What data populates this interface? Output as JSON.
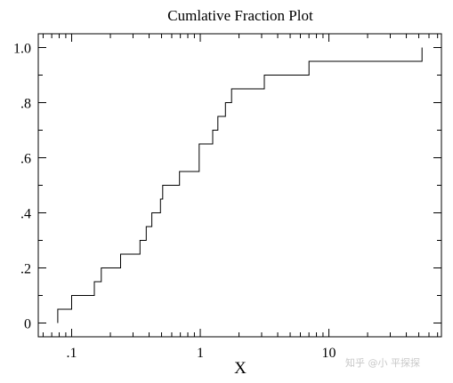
{
  "chart_data": {
    "type": "step",
    "title": "Cumlative Fraction Plot",
    "xlabel": "X",
    "ylabel": "",
    "xscale": "log",
    "xlim": [
      0.055,
      75
    ],
    "ylim": [
      -0.05,
      1.05
    ],
    "xticks_major": [
      {
        "value": 0.1,
        "label": ".1"
      },
      {
        "value": 1,
        "label": "1"
      },
      {
        "value": 10,
        "label": "10"
      }
    ],
    "yticks_major": [
      {
        "value": 0,
        "label": "0"
      },
      {
        "value": 0.2,
        "label": ".2"
      },
      {
        "value": 0.4,
        "label": ".4"
      },
      {
        "value": 0.6,
        "label": ".6"
      },
      {
        "value": 0.8,
        "label": ".8"
      },
      {
        "value": 1.0,
        "label": "1.0"
      }
    ],
    "yticks_minor": [
      0.1,
      0.3,
      0.5,
      0.7,
      0.9
    ],
    "grid": false,
    "steps": [
      {
        "x": 0.078,
        "y": 0.05
      },
      {
        "x": 0.1,
        "y": 0.1
      },
      {
        "x": 0.15,
        "y": 0.15
      },
      {
        "x": 0.17,
        "y": 0.2
      },
      {
        "x": 0.24,
        "y": 0.25
      },
      {
        "x": 0.34,
        "y": 0.3
      },
      {
        "x": 0.38,
        "y": 0.35
      },
      {
        "x": 0.42,
        "y": 0.4
      },
      {
        "x": 0.49,
        "y": 0.45
      },
      {
        "x": 0.51,
        "y": 0.5
      },
      {
        "x": 0.69,
        "y": 0.55
      },
      {
        "x": 0.98,
        "y": 0.65
      },
      {
        "x": 1.25,
        "y": 0.7
      },
      {
        "x": 1.37,
        "y": 0.75
      },
      {
        "x": 1.57,
        "y": 0.8
      },
      {
        "x": 1.75,
        "y": 0.85
      },
      {
        "x": 3.15,
        "y": 0.9
      },
      {
        "x": 7.0,
        "y": 0.95
      },
      {
        "x": 53.0,
        "y": 1.0
      }
    ],
    "start_y": 0,
    "watermark": "知乎 @小 平探探"
  }
}
